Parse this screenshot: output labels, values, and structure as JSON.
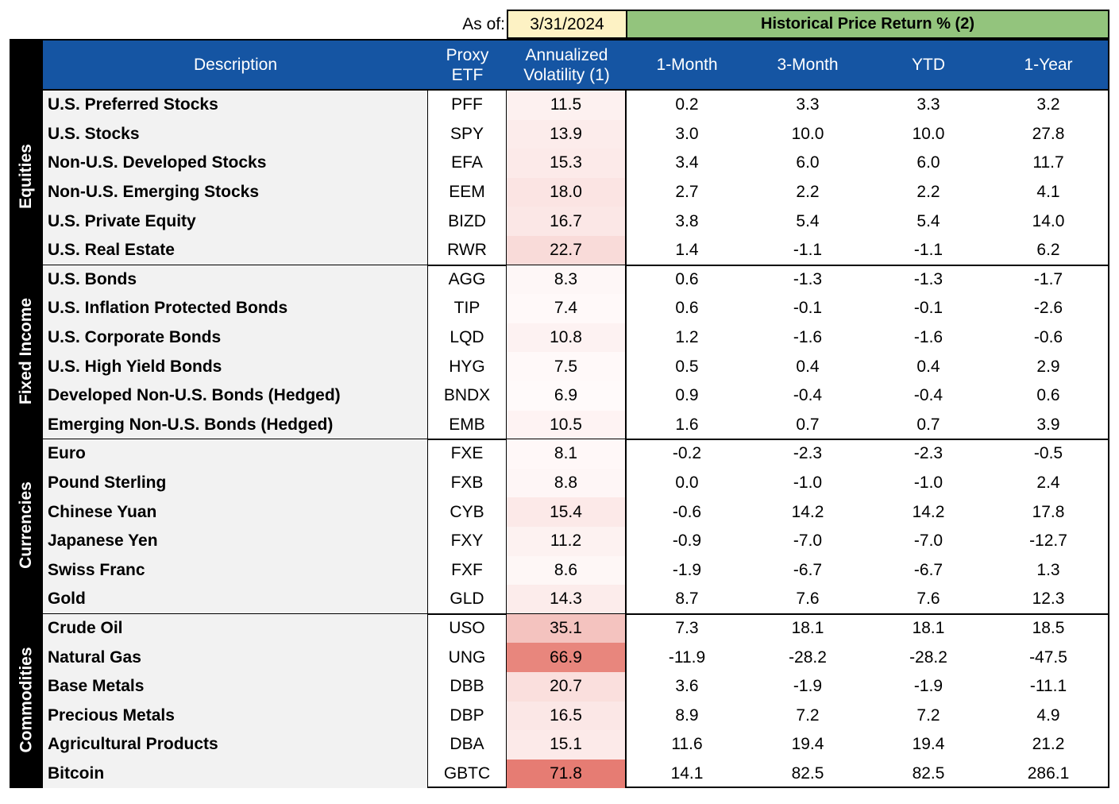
{
  "header": {
    "as_of_label": "As of:",
    "as_of_date": "3/31/2024",
    "historical_title": "Historical Price Return % (2)"
  },
  "columns": {
    "description": "Description",
    "proxy_etf": "Proxy\nETF",
    "volatility": "Annualized\nVolatility (1)",
    "m1": "1-Month",
    "m3": "3-Month",
    "ytd": "YTD",
    "y1": "1-Year"
  },
  "colors": {
    "header_blue": "#1555a3",
    "historical_green": "#93c47d",
    "date_yellow": "#fdf2c4",
    "desc_gray": "#f2f2f2",
    "vol_heat_low": "#fffafa",
    "vol_heat_high": "#e67c73"
  },
  "categories": [
    {
      "name": "Equities",
      "rows": [
        {
          "desc": "U.S. Preferred Stocks",
          "etf": "PFF",
          "vol": "11.5",
          "m1": "0.2",
          "m3": "3.3",
          "ytd": "3.3",
          "y1": "3.2"
        },
        {
          "desc": "U.S. Stocks",
          "etf": "SPY",
          "vol": "13.9",
          "m1": "3.0",
          "m3": "10.0",
          "ytd": "10.0",
          "y1": "27.8"
        },
        {
          "desc": "Non-U.S. Developed Stocks",
          "etf": "EFA",
          "vol": "15.3",
          "m1": "3.4",
          "m3": "6.0",
          "ytd": "6.0",
          "y1": "11.7"
        },
        {
          "desc": "Non-U.S. Emerging Stocks",
          "etf": "EEM",
          "vol": "18.0",
          "m1": "2.7",
          "m3": "2.2",
          "ytd": "2.2",
          "y1": "4.1"
        },
        {
          "desc": "U.S. Private Equity",
          "etf": "BIZD",
          "vol": "16.7",
          "m1": "3.8",
          "m3": "5.4",
          "ytd": "5.4",
          "y1": "14.0"
        },
        {
          "desc": "U.S. Real Estate",
          "etf": "RWR",
          "vol": "22.7",
          "m1": "1.4",
          "m3": "-1.1",
          "ytd": "-1.1",
          "y1": "6.2"
        }
      ]
    },
    {
      "name": "Fixed Income",
      "rows": [
        {
          "desc": "U.S. Bonds",
          "etf": "AGG",
          "vol": "8.3",
          "m1": "0.6",
          "m3": "-1.3",
          "ytd": "-1.3",
          "y1": "-1.7"
        },
        {
          "desc": "U.S. Inflation Protected Bonds",
          "etf": "TIP",
          "vol": "7.4",
          "m1": "0.6",
          "m3": "-0.1",
          "ytd": "-0.1",
          "y1": "-2.6"
        },
        {
          "desc": "U.S. Corporate Bonds",
          "etf": "LQD",
          "vol": "10.8",
          "m1": "1.2",
          "m3": "-1.6",
          "ytd": "-1.6",
          "y1": "-0.6"
        },
        {
          "desc": "U.S. High Yield Bonds",
          "etf": "HYG",
          "vol": "7.5",
          "m1": "0.5",
          "m3": "0.4",
          "ytd": "0.4",
          "y1": "2.9"
        },
        {
          "desc": "Developed Non-U.S. Bonds (Hedged)",
          "etf": "BNDX",
          "vol": "6.9",
          "m1": "0.9",
          "m3": "-0.4",
          "ytd": "-0.4",
          "y1": "0.6"
        },
        {
          "desc": "Emerging Non-U.S. Bonds (Hedged)",
          "etf": "EMB",
          "vol": "10.5",
          "m1": "1.6",
          "m3": "0.7",
          "ytd": "0.7",
          "y1": "3.9"
        }
      ]
    },
    {
      "name": "Currencies",
      "rows": [
        {
          "desc": "Euro",
          "etf": "FXE",
          "vol": "8.1",
          "m1": "-0.2",
          "m3": "-2.3",
          "ytd": "-2.3",
          "y1": "-0.5"
        },
        {
          "desc": "Pound Sterling",
          "etf": "FXB",
          "vol": "8.8",
          "m1": "0.0",
          "m3": "-1.0",
          "ytd": "-1.0",
          "y1": "2.4"
        },
        {
          "desc": "Chinese Yuan",
          "etf": "CYB",
          "vol": "15.4",
          "m1": "-0.6",
          "m3": "14.2",
          "ytd": "14.2",
          "y1": "17.8"
        },
        {
          "desc": "Japanese Yen",
          "etf": "FXY",
          "vol": "11.2",
          "m1": "-0.9",
          "m3": "-7.0",
          "ytd": "-7.0",
          "y1": "-12.7"
        },
        {
          "desc": "Swiss Franc",
          "etf": "FXF",
          "vol": "8.6",
          "m1": "-1.9",
          "m3": "-6.7",
          "ytd": "-6.7",
          "y1": "1.3"
        },
        {
          "desc": "Gold",
          "etf": "GLD",
          "vol": "14.3",
          "m1": "8.7",
          "m3": "7.6",
          "ytd": "7.6",
          "y1": "12.3"
        }
      ]
    },
    {
      "name": "Commodities",
      "rows": [
        {
          "desc": "Crude Oil",
          "etf": "USO",
          "vol": "35.1",
          "m1": "7.3",
          "m3": "18.1",
          "ytd": "18.1",
          "y1": "18.5"
        },
        {
          "desc": "Natural Gas",
          "etf": "UNG",
          "vol": "66.9",
          "m1": "-11.9",
          "m3": "-28.2",
          "ytd": "-28.2",
          "y1": "-47.5"
        },
        {
          "desc": "Base Metals",
          "etf": "DBB",
          "vol": "20.7",
          "m1": "3.6",
          "m3": "-1.9",
          "ytd": "-1.9",
          "y1": "-11.1"
        },
        {
          "desc": "Precious Metals",
          "etf": "DBP",
          "vol": "16.5",
          "m1": "8.9",
          "m3": "7.2",
          "ytd": "7.2",
          "y1": "4.9"
        },
        {
          "desc": "Agricultural Products",
          "etf": "DBA",
          "vol": "15.1",
          "m1": "11.6",
          "m3": "19.4",
          "ytd": "19.4",
          "y1": "21.2"
        },
        {
          "desc": "Bitcoin",
          "etf": "GBTC",
          "vol": "71.8",
          "m1": "14.1",
          "m3": "82.5",
          "ytd": "82.5",
          "y1": "286.1"
        }
      ]
    }
  ]
}
